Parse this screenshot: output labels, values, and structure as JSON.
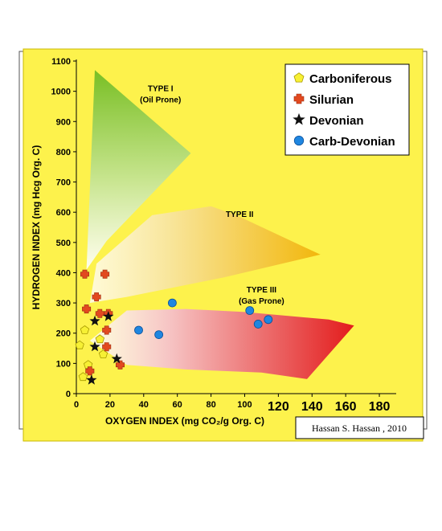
{
  "chart_data": {
    "type": "scatter",
    "xlabel": "OXYGEN INDEX (mg CO₂/g Org. C)",
    "ylabel": "HYDROGEN INDEX (mg Hcg Org. C)",
    "xlim": [
      0,
      190
    ],
    "ylim": [
      0,
      1100
    ],
    "x_ticks_small": [
      0,
      20,
      40,
      60,
      80,
      100
    ],
    "x_ticks_large": [
      120,
      140,
      160,
      180
    ],
    "y_ticks": [
      0,
      100,
      200,
      300,
      400,
      500,
      600,
      700,
      800,
      900,
      1000,
      1100
    ],
    "grid": false,
    "legend_position": "top-right",
    "annotations": [
      {
        "lines": [
          "TYPE I",
          "(Oil Prone)"
        ],
        "x": 50,
        "y": 1000
      },
      {
        "lines": [
          "TYPE II"
        ],
        "x": 97,
        "y": 585
      },
      {
        "lines": [
          "TYPE III",
          "(Gas Prone)"
        ],
        "x": 110,
        "y": 335
      }
    ],
    "regions": [
      {
        "name": "TYPE I",
        "color": "#7fc42a",
        "points": [
          [
            11,
            1070
          ],
          [
            68,
            795
          ],
          [
            18,
            505
          ],
          [
            6,
            410
          ]
        ]
      },
      {
        "name": "TYPE II",
        "color": "#f2c21a",
        "points": [
          [
            12,
            430
          ],
          [
            45,
            590
          ],
          [
            80,
            620
          ],
          [
            95,
            590
          ],
          [
            145,
            460
          ],
          [
            88,
            385
          ],
          [
            30,
            320
          ],
          [
            8,
            300
          ]
        ]
      },
      {
        "name": "TYPE III",
        "color": "#e52f2f",
        "points": [
          [
            8,
            175
          ],
          [
            30,
            275
          ],
          [
            65,
            280
          ],
          [
            100,
            270
          ],
          [
            150,
            245
          ],
          [
            165,
            225
          ],
          [
            137,
            48
          ],
          [
            110,
            70
          ],
          [
            65,
            80
          ],
          [
            30,
            95
          ]
        ]
      }
    ],
    "series": [
      {
        "name": "Carboniferous",
        "marker": "pentagon",
        "color": "#f7f034",
        "points": [
          [
            2,
            160
          ],
          [
            5,
            210
          ],
          [
            14,
            180
          ],
          [
            16,
            130
          ],
          [
            7,
            95
          ],
          [
            4,
            55
          ]
        ]
      },
      {
        "name": "Silurian",
        "marker": "cross",
        "color": "#e2491f",
        "points": [
          [
            5,
            395
          ],
          [
            17,
            395
          ],
          [
            6,
            280
          ],
          [
            12,
            320
          ],
          [
            14,
            265
          ],
          [
            19,
            265
          ],
          [
            18,
            210
          ],
          [
            18,
            155
          ],
          [
            8,
            75
          ],
          [
            26,
            95
          ]
        ]
      },
      {
        "name": "Devonian",
        "marker": "star",
        "color": "#111111",
        "points": [
          [
            11,
            240
          ],
          [
            19,
            255
          ],
          [
            11,
            155
          ],
          [
            24,
            115
          ],
          [
            9,
            45
          ]
        ]
      },
      {
        "name": "Carb-Devonian",
        "marker": "circle",
        "color": "#1f86e0",
        "points": [
          [
            57,
            300
          ],
          [
            37,
            210
          ],
          [
            49,
            195
          ],
          [
            103,
            275
          ],
          [
            108,
            230
          ],
          [
            114,
            245
          ]
        ]
      }
    ],
    "credit": "Hassan S. Hassan , 2010"
  }
}
